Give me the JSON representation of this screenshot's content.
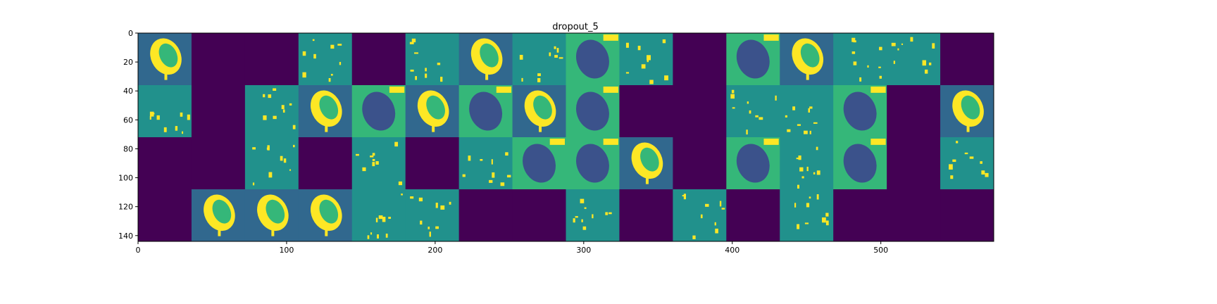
{
  "chart_data": {
    "type": "heatmap",
    "title": "dropout_5",
    "xlabel": "",
    "ylabel": "",
    "xlim": [
      0,
      576
    ],
    "ylim": [
      144,
      0
    ],
    "xticks": [
      0,
      100,
      200,
      300,
      400,
      500
    ],
    "yticks": [
      0,
      20,
      40,
      60,
      80,
      100,
      120,
      140
    ],
    "grid": false,
    "colormap": "viridis",
    "tile_size": 36,
    "columns": 16,
    "rows": 4,
    "tiles": [
      [
        "leaf",
        "dark",
        "dark",
        "sparse",
        "dark",
        "sparse",
        "leaf",
        "sparse",
        "bg",
        "sparse",
        "dark",
        "bg",
        "leaf",
        "sparse",
        "sparse",
        "dark"
      ],
      [
        "sparse",
        "dark",
        "sparse",
        "leaf",
        "bg",
        "leaf",
        "bg",
        "leaf",
        "bg",
        "dark",
        "dark",
        "sparse",
        "sparse",
        "bg",
        "dark",
        "leaf"
      ],
      [
        "dark",
        "dark",
        "sparse",
        "dark",
        "sparse",
        "dark",
        "sparse",
        "bg",
        "bg",
        "leaf",
        "dark",
        "bg",
        "sparse",
        "bg",
        "dark",
        "sparse"
      ],
      [
        "dark",
        "leaf",
        "leaf",
        "leaf",
        "sparse",
        "sparse",
        "dark",
        "dark",
        "sparse",
        "dark",
        "sparse",
        "dark",
        "sparse",
        "dark",
        "dark",
        "dark"
      ]
    ]
  },
  "colors": {
    "dark": "#440154",
    "teal": "#21918c",
    "blue": "#31688e",
    "green": "#35b779",
    "yellow": "#fde725",
    "navy": "#3b528b"
  }
}
